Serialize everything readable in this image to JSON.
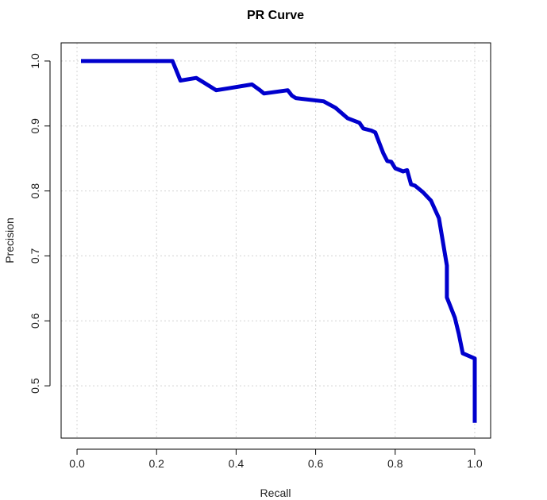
{
  "chart_data": {
    "type": "line",
    "title": "PR Curve",
    "xlabel": "Recall",
    "ylabel": "Precision",
    "xlim": [
      -0.04,
      1.04
    ],
    "ylim": [
      0.4195,
      1.028
    ],
    "grid": true,
    "x_ticks": [
      0.0,
      0.2,
      0.4,
      0.6,
      0.8,
      1.0
    ],
    "x_tick_labels": [
      "0.0",
      "0.2",
      "0.4",
      "0.6",
      "0.8",
      "1.0"
    ],
    "y_ticks": [
      0.5,
      0.6,
      0.7,
      0.8,
      0.9,
      1.0
    ],
    "y_tick_labels": [
      "0.5",
      "0.6",
      "0.7",
      "0.8",
      "0.9",
      "1.0"
    ],
    "line_color": "#0000cd",
    "series": [
      {
        "x": [
          0.01,
          0.24,
          0.26,
          0.3,
          0.35,
          0.38,
          0.44,
          0.46,
          0.47,
          0.53,
          0.54,
          0.55,
          0.62,
          0.65,
          0.68,
          0.71,
          0.72,
          0.74,
          0.75,
          0.77,
          0.78,
          0.79,
          0.8,
          0.82,
          0.83,
          0.84,
          0.85,
          0.87,
          0.89,
          0.91,
          0.93,
          0.93,
          0.95,
          0.96,
          0.97,
          1.0,
          1.0
        ],
        "y": [
          1.0,
          1.0,
          0.97,
          0.974,
          0.955,
          0.958,
          0.964,
          0.955,
          0.95,
          0.955,
          0.947,
          0.943,
          0.938,
          0.928,
          0.912,
          0.905,
          0.896,
          0.893,
          0.89,
          0.858,
          0.846,
          0.845,
          0.835,
          0.83,
          0.832,
          0.81,
          0.808,
          0.798,
          0.785,
          0.758,
          0.685,
          0.636,
          0.605,
          0.58,
          0.55,
          0.542,
          0.443
        ]
      }
    ]
  }
}
